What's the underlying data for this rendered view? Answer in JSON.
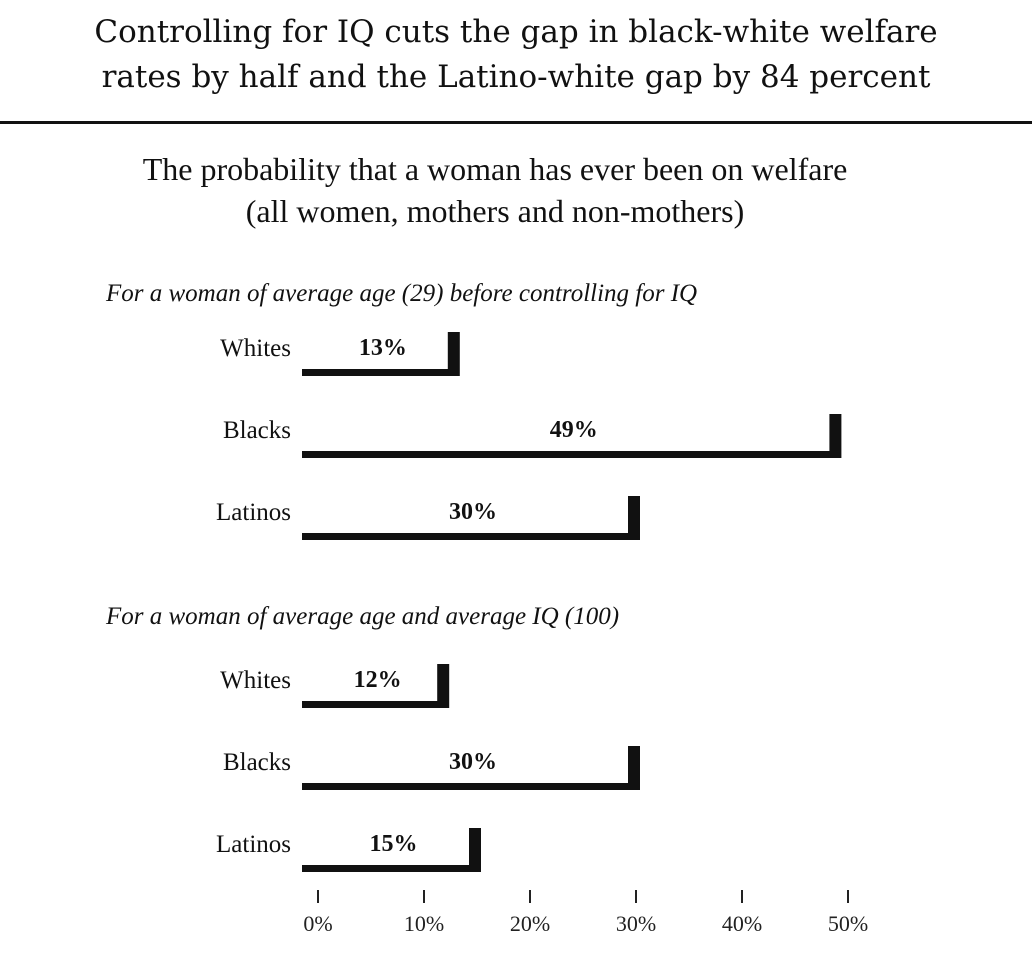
{
  "title": {
    "line1": "Controlling for IQ cuts the gap in black-white welfare",
    "line2": "rates by half and the Latino-white gap by 84 percent"
  },
  "subtitle": {
    "line1": "The probability that a woman has ever been on welfare",
    "line2": "(all women, mothers and non-mothers)"
  },
  "chart_data": {
    "type": "bar",
    "orientation": "horizontal",
    "xlim": [
      0,
      50
    ],
    "ticks": [
      0,
      10,
      20,
      30,
      40,
      50
    ],
    "tick_labels": [
      "0%",
      "10%",
      "20%",
      "30%",
      "40%",
      "50%"
    ],
    "grid": false,
    "panels": [
      {
        "title": "For a woman of average age (29) before controlling for IQ",
        "categories": [
          "Whites",
          "Blacks",
          "Latinos"
        ],
        "values": [
          13,
          49,
          30
        ],
        "labels": [
          "13%",
          "49%",
          "30%"
        ]
      },
      {
        "title": "For a woman of average age and average IQ (100)",
        "categories": [
          "Whites",
          "Blacks",
          "Latinos"
        ],
        "values": [
          12,
          30,
          15
        ],
        "labels": [
          "12%",
          "30%",
          "15%"
        ]
      }
    ]
  },
  "colors": {
    "bar_shadow": "#111111",
    "bar_face": "#ffffff",
    "text": "#111111"
  }
}
